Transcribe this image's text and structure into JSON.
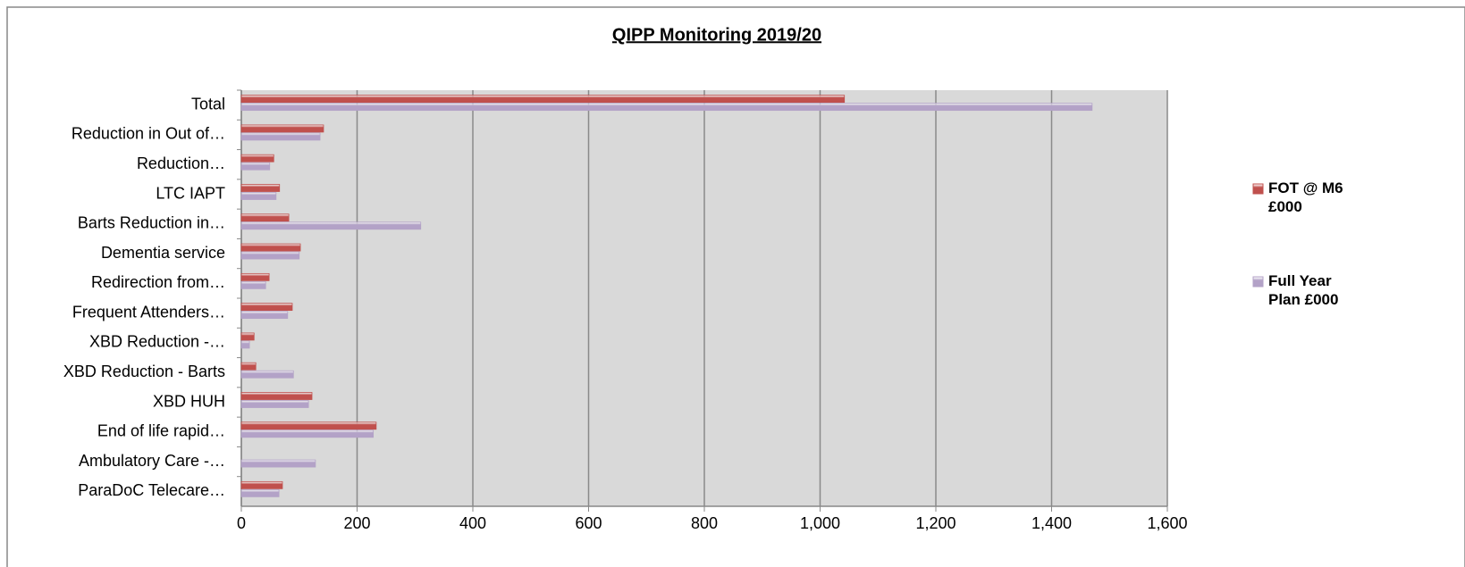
{
  "chart_data": {
    "type": "bar",
    "orientation": "horizontal",
    "title": "QIPP Monitoring 2019/20",
    "categories": [
      "Total",
      "Reduction in Out of…",
      "Reduction…",
      "LTC IAPT",
      "Barts Reduction in…",
      "Dementia service",
      "Redirection from…",
      "Frequent  Attenders…",
      "XBD Reduction -…",
      "XBD Reduction - Barts",
      "XBD HUH",
      "End of life rapid…",
      "Ambulatory Care -…",
      "ParaDoC Telecare…"
    ],
    "series": [
      {
        "name": "FOT @ M6 £000",
        "color": "#c0504d",
        "values": [
          1042,
          142,
          56,
          66,
          82,
          102,
          48,
          88,
          22,
          25,
          122,
          233,
          0,
          71
        ]
      },
      {
        "name": "Full Year Plan £000",
        "color": "#b3a2c7",
        "values": [
          1470,
          136,
          49,
          60,
          310,
          100,
          42,
          80,
          14,
          90,
          116,
          228,
          128,
          65
        ]
      }
    ],
    "xlim": [
      0,
      1600
    ],
    "xticks": [
      0,
      {
        "value": 200,
        "label": "200"
      },
      400,
      600,
      800,
      {
        "value": 1000,
        "label": "1,000"
      },
      {
        "value": 1200,
        "label": "1,200"
      },
      {
        "value": 1400,
        "label": "1,400"
      },
      {
        "value": 1600,
        "label": "1,600"
      }
    ],
    "grid": true,
    "legend": "right"
  }
}
